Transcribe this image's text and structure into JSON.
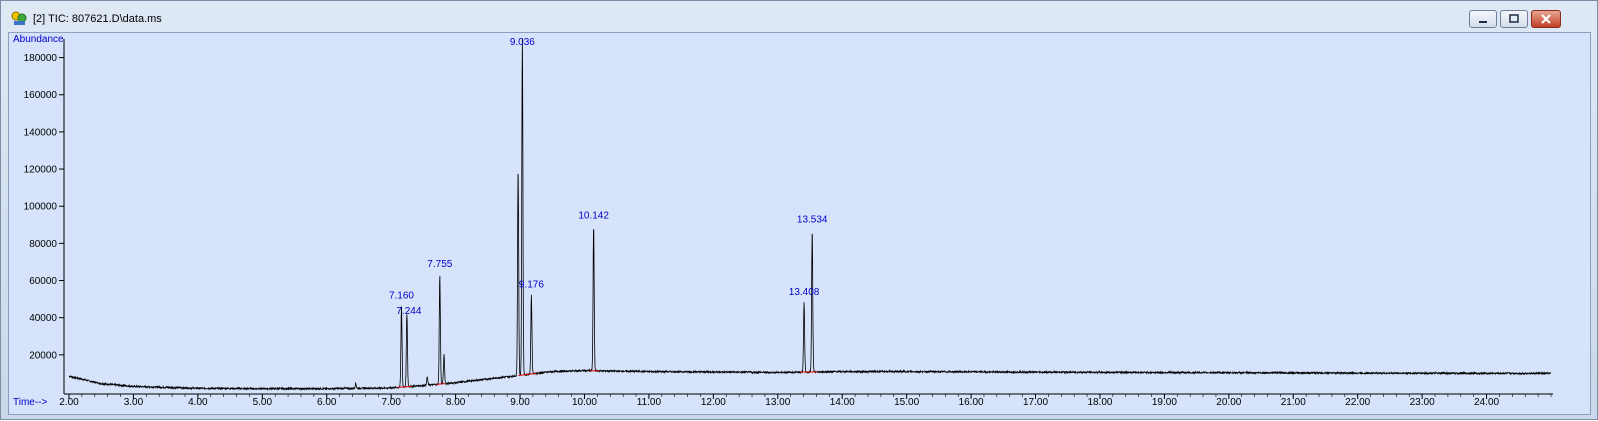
{
  "window": {
    "title": "[2] TIC: 807621.D\\data.ms",
    "icon": "chromatogram-app-icon",
    "controls": [
      "minimize",
      "maximize",
      "close"
    ],
    "colors": {
      "plot_background": "#d6e3fa",
      "trace": "#000000",
      "label": "#0000cc",
      "baseline": "#e00000"
    }
  },
  "chart_data": {
    "type": "line",
    "ylabel": "Abundance",
    "xlabel": "Time-->",
    "xlim": [
      2.0,
      25.0
    ],
    "ylim": [
      0,
      190000
    ],
    "x_ticks": [
      "2.00",
      "3.00",
      "4.00",
      "5.00",
      "6.00",
      "7.00",
      "8.00",
      "9.00",
      "10.00",
      "11.00",
      "12.00",
      "13.00",
      "14.00",
      "15.00",
      "16.00",
      "17.00",
      "18.00",
      "19.00",
      "20.00",
      "21.00",
      "22.00",
      "23.00",
      "24.00"
    ],
    "y_ticks": [
      "20000",
      "40000",
      "60000",
      "80000",
      "100000",
      "120000",
      "140000",
      "160000",
      "180000"
    ],
    "baseline_points": [
      [
        2.0,
        8500
      ],
      [
        2.5,
        4500
      ],
      [
        3.0,
        3000
      ],
      [
        4.0,
        2000
      ],
      [
        5.0,
        1800
      ],
      [
        6.0,
        1800
      ],
      [
        7.0,
        2200
      ],
      [
        7.5,
        3500
      ],
      [
        8.0,
        5000
      ],
      [
        8.5,
        7000
      ],
      [
        9.0,
        9000
      ],
      [
        9.5,
        11000
      ],
      [
        10.0,
        11500
      ],
      [
        11.0,
        11000
      ],
      [
        12.0,
        10800
      ],
      [
        13.0,
        10500
      ],
      [
        14.0,
        11000
      ],
      [
        15.0,
        11000
      ],
      [
        17.0,
        10700
      ],
      [
        19.0,
        10500
      ],
      [
        21.0,
        10300
      ],
      [
        23.0,
        10100
      ],
      [
        25.0,
        10000
      ]
    ],
    "peaks": [
      {
        "label": "7.160",
        "x": 7.16,
        "y": 46000
      },
      {
        "label": "7.244",
        "x": 7.244,
        "y": 42000
      },
      {
        "label": "7.755",
        "x": 7.755,
        "y": 63000
      },
      {
        "label": "9.036",
        "x": 9.036,
        "y": 190000
      },
      {
        "label": "9.176",
        "x": 9.176,
        "y": 52000
      },
      {
        "label": "10.142",
        "x": 10.142,
        "y": 89000
      },
      {
        "label": "13.408",
        "x": 13.408,
        "y": 48000
      },
      {
        "label": "13.534",
        "x": 13.534,
        "y": 87000
      }
    ],
    "minor_peaks": [
      {
        "x": 6.45,
        "y": 4500
      },
      {
        "x": 7.82,
        "y": 20000
      },
      {
        "x": 7.56,
        "y": 8000
      },
      {
        "x": 8.97,
        "y": 120000
      }
    ]
  }
}
